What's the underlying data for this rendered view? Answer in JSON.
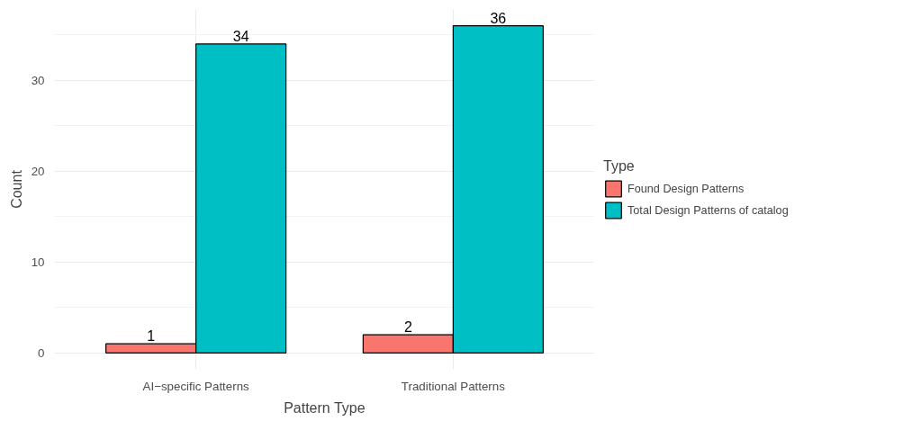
{
  "chart_data": {
    "type": "bar",
    "xlabel": "Pattern Type",
    "ylabel": "Count",
    "legend_title": "Type",
    "categories": [
      "AI−specific Patterns",
      "Traditional Patterns"
    ],
    "series": [
      {
        "name": "Found Design Patterns",
        "color": "#f8766d",
        "values": [
          1,
          2
        ]
      },
      {
        "name": "Total Design Patterns of catalog",
        "color": "#00bfc4",
        "values": [
          34,
          36
        ]
      }
    ],
    "ylim": [
      -1.8,
      37.8
    ],
    "yticks": [
      0,
      10,
      20,
      30
    ],
    "grid": true,
    "legend": "right",
    "data_labels": true
  }
}
